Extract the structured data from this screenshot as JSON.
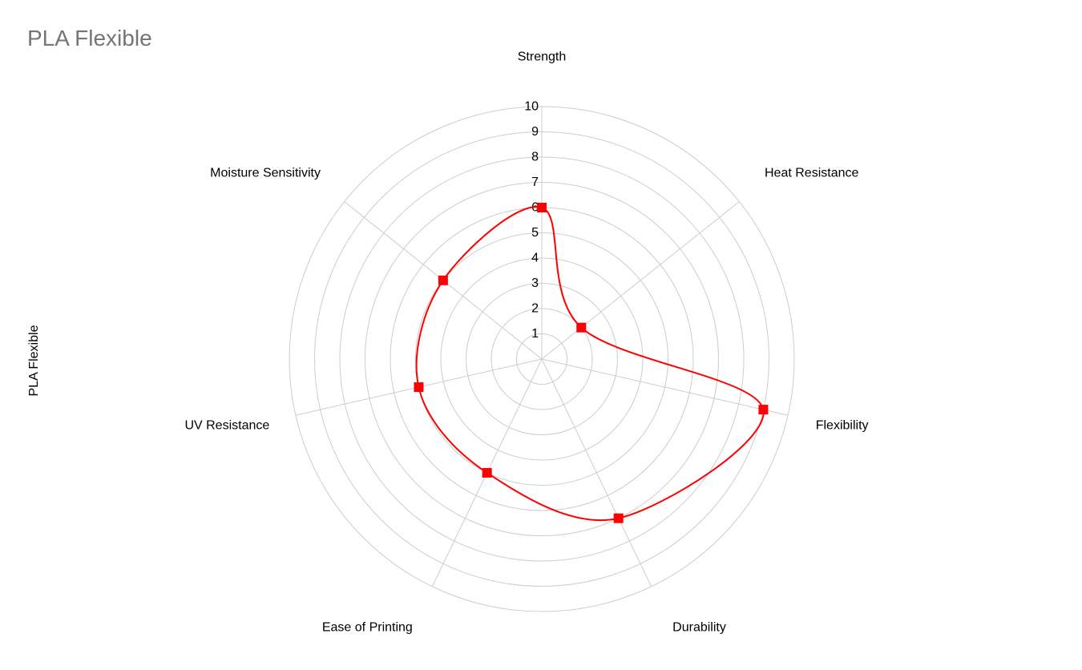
{
  "chart_data": {
    "type": "radar",
    "title": "PLA Flexible",
    "side_label": "PLA Flexible",
    "categories": [
      "Strength",
      "Heat Resistance",
      "Flexibility",
      "Durability",
      "Ease of Printing",
      "UV Resistance",
      "Moisture Sensitivity"
    ],
    "series": [
      {
        "name": "PLA Flexible",
        "values": [
          6,
          2,
          9,
          7,
          5,
          5,
          5
        ],
        "color": "#ff0000",
        "marker": "square",
        "smooth": true
      }
    ],
    "r_ticks": [
      "1",
      "2",
      "3",
      "4",
      "5",
      "6",
      "7",
      "8",
      "9",
      "10"
    ],
    "rlim": [
      0,
      10
    ],
    "grid": true,
    "grid_color": "#cccccc",
    "legend": "none"
  }
}
